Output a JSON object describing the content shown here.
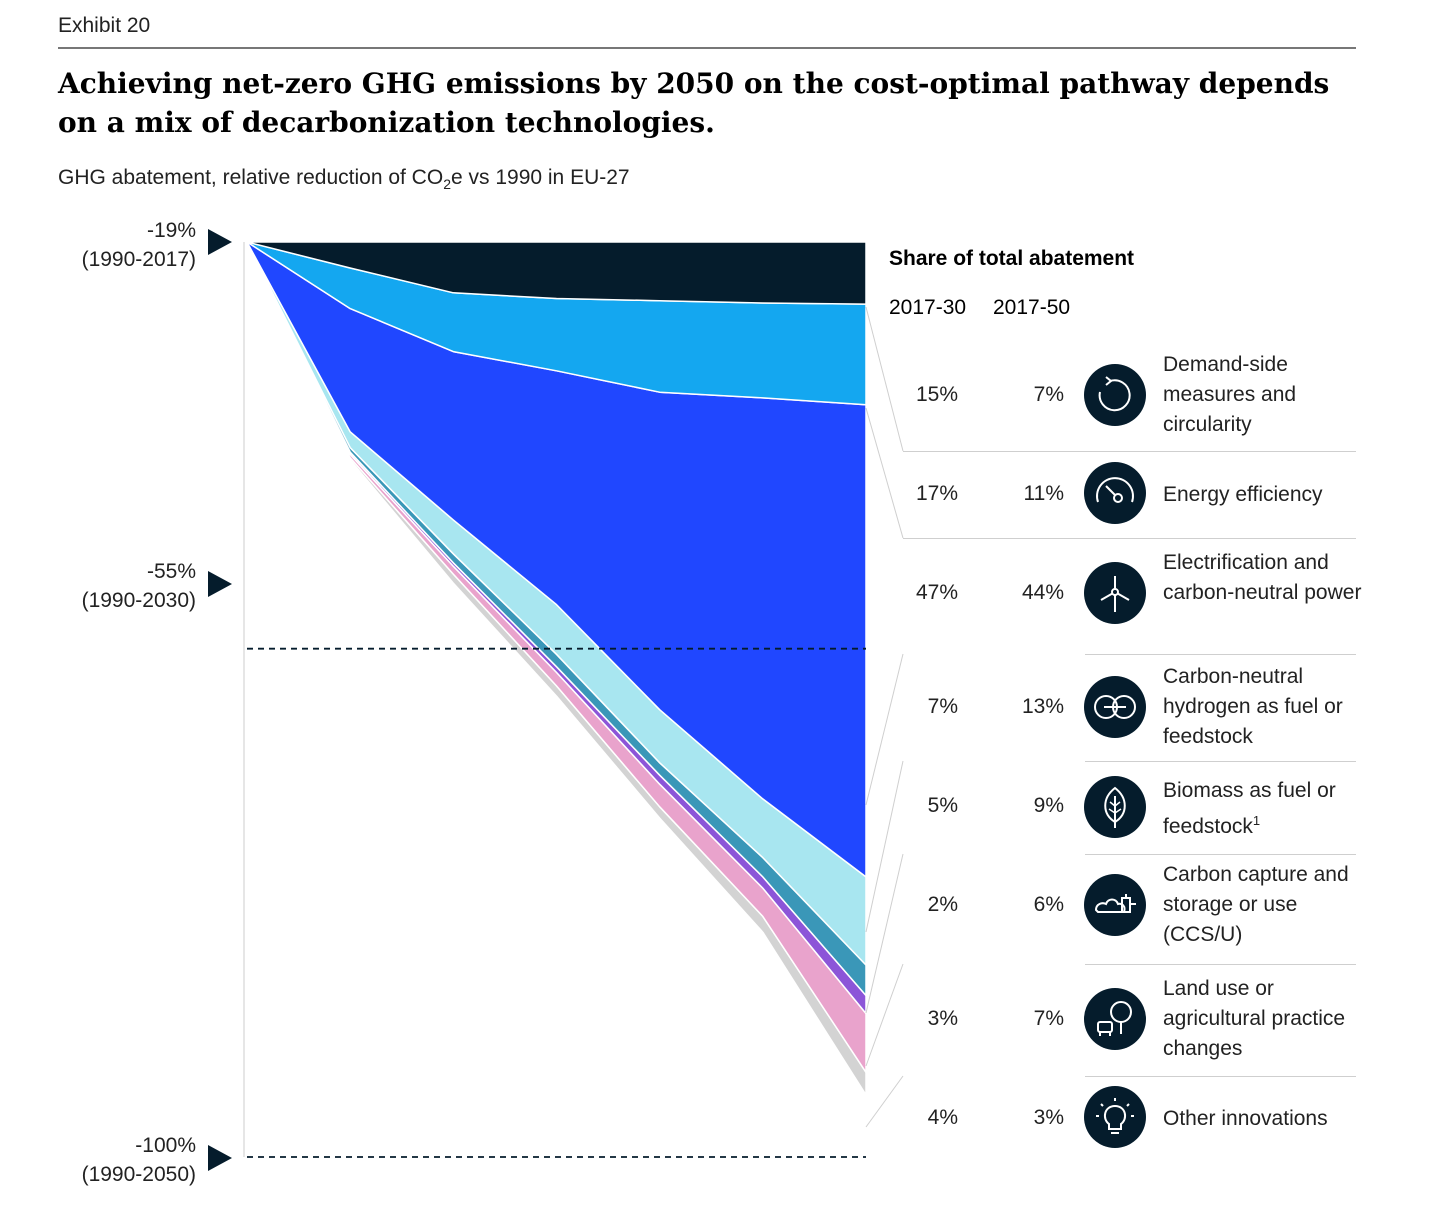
{
  "exhibit": "Exhibit 20",
  "title": "Achieving net-zero GHG emissions by 2050 on the cost-optimal pathway depends on a mix of decarbonization technologies.",
  "subtitle": {
    "pre": "GHG abatement, relative reduction of CO",
    "sub": "2",
    "post": "e vs 1990 in EU-27"
  },
  "y_markers": [
    {
      "value": "-19%",
      "period": "(1990-2017)"
    },
    {
      "value": "-55%",
      "period": "(1990-2030)"
    },
    {
      "value": "-100%",
      "period": "(1990-2050)"
    }
  ],
  "table": {
    "heading": "Share of total abatement",
    "col1": "2017-30",
    "col2": "2017-50",
    "rows": [
      {
        "p1": "15%",
        "p2": "7%",
        "icon": "circular-arrow-icon",
        "label": "Demand-side measures and circularity"
      },
      {
        "p1": "17%",
        "p2": "11%",
        "icon": "gauge-icon",
        "label": "Energy efficiency"
      },
      {
        "p1": "47%",
        "p2": "44%",
        "icon": "wind-turbine-icon",
        "label": "Electrification and carbon-neutral power"
      },
      {
        "p1": "7%",
        "p2": "13%",
        "icon": "hydrogen-molecule-icon",
        "label": "Carbon-neutral hydrogen as fuel or feedstock"
      },
      {
        "p1": "5%",
        "p2": "9%",
        "icon": "leaf-icon",
        "label": "Biomass as fuel or feedstock",
        "sup": "1"
      },
      {
        "p1": "2%",
        "p2": "6%",
        "icon": "co2-capture-icon",
        "label": "Carbon capture and storage or use (CCS/U)"
      },
      {
        "p1": "3%",
        "p2": "7%",
        "icon": "tree-cow-icon",
        "label": "Land use or agricultural practice changes"
      },
      {
        "p1": "4%",
        "p2": "3%",
        "icon": "lightbulb-icon",
        "label": "Other innovations"
      }
    ]
  },
  "chart_data": {
    "type": "area",
    "x": [
      2017,
      2022,
      2027,
      2032,
      2037,
      2042,
      2047
    ],
    "ylim": [
      -100,
      -19
    ],
    "reference_lines": [
      -55,
      -100
    ],
    "series": [
      {
        "name": "Demand-side measures and circularity",
        "color": "#051c2c",
        "values": [
          -19.0,
          -21.3,
          -23.5,
          -24.0,
          -24.2,
          -24.4,
          -24.5
        ]
      },
      {
        "name": "Energy efficiency",
        "color": "#14a7f0",
        "values": [
          -19.0,
          -24.9,
          -28.7,
          -30.4,
          -32.3,
          -32.8,
          -33.4
        ]
      },
      {
        "name": "Electrification and carbon-neutral power",
        "color": "#2047ff",
        "values": [
          -19.0,
          -35.8,
          -43.6,
          -51.1,
          -60.4,
          -68.3,
          -75.2
        ]
      },
      {
        "name": "Carbon-neutral hydrogen as fuel or feedstock",
        "color": "#a8e6f0",
        "values": [
          -19.0,
          -37.2,
          -46.6,
          -55.5,
          -65.1,
          -73.5,
          -83.0
        ]
      },
      {
        "name": "Biomass as fuel or feedstock",
        "color": "#3a97b8",
        "values": [
          -19.0,
          -37.6,
          -47.4,
          -56.6,
          -66.2,
          -75.2,
          -85.7
        ]
      },
      {
        "name": "Carbon capture and storage or use (CCS/U)",
        "color": "#8c55d8",
        "values": [
          -19.0,
          -37.8,
          -47.7,
          -57.1,
          -67.0,
          -76.2,
          -87.3
        ]
      },
      {
        "name": "Land use or agricultural practice changes",
        "color": "#e9a3cc",
        "values": [
          -19.0,
          -38.1,
          -48.4,
          -58.3,
          -69.0,
          -78.7,
          -92.5
        ]
      },
      {
        "name": "Other innovations",
        "color": "#d3d3d3",
        "values": [
          -19.0,
          -38.3,
          -49.2,
          -59.2,
          -70.0,
          -80.1,
          -94.5
        ]
      }
    ]
  }
}
